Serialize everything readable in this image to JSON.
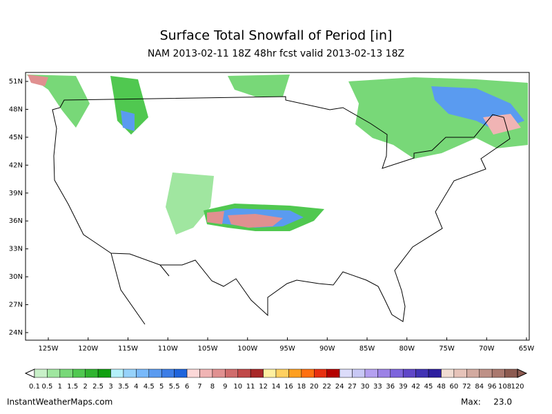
{
  "header": {
    "title": "Surface Total Snowfall of Period [in]",
    "subtitle": "NAM 2013-02-11 18Z 48hr fcst valid 2013-02-13 18Z"
  },
  "map": {
    "lat_labels": [
      "51N",
      "48N",
      "45N",
      "42N",
      "39N",
      "36N",
      "33N",
      "30N",
      "27N",
      "24N"
    ],
    "lon_labels": [
      "125W",
      "120W",
      "115W",
      "110W",
      "105W",
      "100W",
      "95W",
      "90W",
      "85W",
      "80W",
      "75W",
      "70W",
      "65W"
    ]
  },
  "legend": {
    "labels": [
      "0.1",
      "0.5",
      "1",
      "1.5",
      "2",
      "2.5",
      "3",
      "3.5",
      "4",
      "4.5",
      "5",
      "5.5",
      "6",
      "7",
      "8",
      "9",
      "10",
      "11",
      "12",
      "14",
      "16",
      "18",
      "20",
      "22",
      "24",
      "27",
      "30",
      "33",
      "36",
      "39",
      "42",
      "45",
      "48",
      "60",
      "72",
      "84",
      "96",
      "108",
      "120"
    ],
    "colors": [
      "#c8f0c8",
      "#a0e6a0",
      "#78d878",
      "#50c850",
      "#30b430",
      "#10a010",
      "#b4f0fa",
      "#96d2fa",
      "#78b9fa",
      "#5a9bf0",
      "#3c7de6",
      "#1e64dc",
      "#fcd8d8",
      "#f0b4b4",
      "#e09090",
      "#d06c6c",
      "#c04848",
      "#a82828",
      "#fff0a0",
      "#ffd060",
      "#ffa020",
      "#ff7010",
      "#e83010",
      "#b40000",
      "#dcdcfa",
      "#c8c8f5",
      "#b4a0f0",
      "#9c82e6",
      "#7d64dc",
      "#5f46c8",
      "#4132b4",
      "#2d1ea0",
      "#f0dcd2",
      "#e6c3b9",
      "#d2aaa0",
      "#be9187",
      "#aa786e",
      "#8c5a50"
    ]
  },
  "footer": {
    "source": "InstantWeatherMaps.com",
    "max_label": "Max:",
    "max_value": "23.0"
  }
}
